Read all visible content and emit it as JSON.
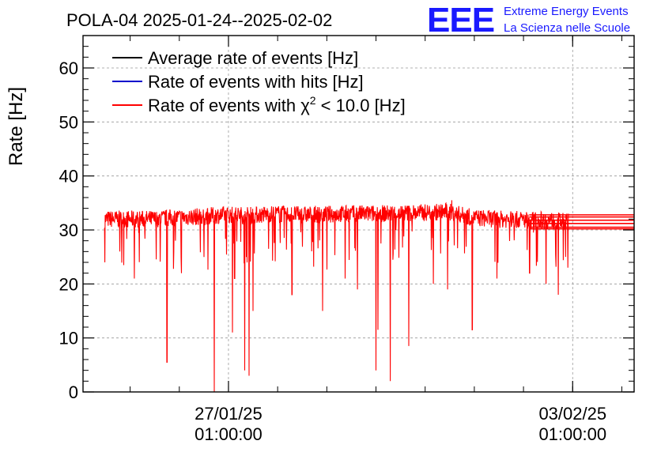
{
  "header": {
    "title": "POLA-04 2025-01-24--2025-02-02",
    "logo_text": "EEE",
    "logo_line1": "Extreme Energy Events",
    "logo_line2": "La Scienza nelle Scuole"
  },
  "colors": {
    "average": "#000000",
    "hits": "#0000cc",
    "chi2": "#ff0000",
    "logo": "#1a1aff",
    "grid": "#999999"
  },
  "chart_data": {
    "type": "line",
    "title": "POLA-04 2025-01-24--2025-02-02",
    "xlabel": "",
    "ylabel": "Rate [Hz]",
    "ylim": [
      0,
      66
    ],
    "yticks": [
      0,
      10,
      20,
      30,
      40,
      50,
      60
    ],
    "xlim": [
      "2025-01-24 02:00",
      "2025-02-04 07:00"
    ],
    "xticks": [
      {
        "x": "2025-01-27 01:00",
        "line1": "27/01/25",
        "line2": "01:00:00"
      },
      {
        "x": "2025-02-03 01:00",
        "line1": "03/02/25",
        "line2": "01:00:00"
      }
    ],
    "grid": true,
    "legend_position": "top-left",
    "legend": [
      {
        "label": "Average rate of events [Hz]",
        "color": "#000000"
      },
      {
        "label": "Rate of events with hits [Hz]",
        "color": "#0000cc"
      },
      {
        "label": "Rate of events with χ",
        "sup": "2",
        "suffix": " < 10.0 [Hz]",
        "color": "#ff0000"
      }
    ],
    "series": [
      {
        "name": "Rate of events with χ² < 10.0 [Hz]",
        "color": "#ff0000",
        "baseline": 32,
        "noise": 1.6,
        "x": [
          "2025-01-24 12:30",
          "2025-01-25 12:00",
          "2025-01-26 00:00",
          "2025-01-26 12:00",
          "2025-01-27 00:00",
          "2025-01-27 12:00",
          "2025-01-28 00:00",
          "2025-01-28 12:00",
          "2025-01-29 00:00",
          "2025-01-29 12:00",
          "2025-01-30 00:00",
          "2025-01-30 12:00",
          "2025-01-31 00:00",
          "2025-01-31 12:00",
          "2025-02-01 00:00",
          "2025-02-01 12:00",
          "2025-02-02 00:00",
          "2025-02-02 12:00",
          "2025-02-02 23:00"
        ],
        "y": [
          32,
          32,
          32.3,
          32.5,
          32.8,
          32.7,
          33,
          32.8,
          32.9,
          33,
          33,
          33.1,
          33.2,
          33.4,
          32.3,
          32,
          31.9,
          31.8,
          31.5
        ],
        "dips": [
          {
            "x": "2025-01-24 12:40",
            "y": 24
          },
          {
            "x": "2025-01-24 20:00",
            "y": 26
          },
          {
            "x": "2025-01-25 03:00",
            "y": 21
          },
          {
            "x": "2025-01-25 19:00",
            "y": 5.5
          },
          {
            "x": "2025-01-26 02:00",
            "y": 22
          },
          {
            "x": "2025-01-26 18:00",
            "y": 0
          },
          {
            "x": "2025-01-26 13:00",
            "y": 25
          },
          {
            "x": "2025-01-27 03:00",
            "y": 11
          },
          {
            "x": "2025-01-27 04:00",
            "y": 21
          },
          {
            "x": "2025-01-27 09:00",
            "y": 4
          },
          {
            "x": "2025-01-27 11:00",
            "y": 3
          },
          {
            "x": "2025-01-27 13:00",
            "y": 15
          },
          {
            "x": "2025-01-28 08:00",
            "y": 18
          },
          {
            "x": "2025-01-28 23:00",
            "y": 15
          },
          {
            "x": "2025-01-29 10:00",
            "y": 21
          },
          {
            "x": "2025-01-29 16:00",
            "y": 19
          },
          {
            "x": "2025-01-30 01:00",
            "y": 4
          },
          {
            "x": "2025-01-30 02:00",
            "y": 11.5
          },
          {
            "x": "2025-01-30 08:00",
            "y": 2
          },
          {
            "x": "2025-01-30 17:00",
            "y": 8.5
          },
          {
            "x": "2025-01-31 05:00",
            "y": 20
          },
          {
            "x": "2025-01-31 12:00",
            "y": 19
          },
          {
            "x": "2025-02-01 00:00",
            "y": 11.5
          },
          {
            "x": "2025-02-01 12:00",
            "y": 21
          },
          {
            "x": "2025-02-02 04:00",
            "y": 22
          },
          {
            "x": "2025-02-02 12:00",
            "y": 20
          },
          {
            "x": "2025-02-02 18:00",
            "y": 18
          }
        ],
        "gap_segments": [
          {
            "y": 32.8
          },
          {
            "y": 32.4
          },
          {
            "y": 31.8
          },
          {
            "y": 31.2
          },
          {
            "y": 30.5
          },
          {
            "y": 30.2
          }
        ],
        "peak": {
          "x": "2025-01-31 14:00",
          "y": 35.5
        }
      }
    ]
  }
}
